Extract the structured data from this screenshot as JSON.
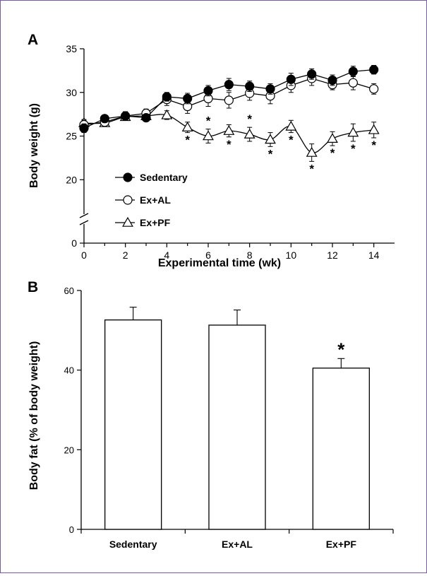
{
  "chart_data": [
    {
      "panel": "A",
      "type": "line",
      "xlabel": "Experimental time (wk)",
      "ylabel": "Body weight (g)",
      "x": [
        0,
        1,
        2,
        3,
        4,
        5,
        6,
        7,
        8,
        9,
        10,
        11,
        12,
        13,
        14
      ],
      "x_ticks": [
        0,
        2,
        4,
        6,
        8,
        10,
        12,
        14
      ],
      "xlim": [
        0,
        15
      ],
      "y_ticks": [
        0,
        20,
        25,
        30,
        35
      ],
      "ylim_upper": [
        18,
        35
      ],
      "y_axis_break": true,
      "legend_position": "center-left",
      "series": [
        {
          "name": "Sedentary",
          "marker": "filled-circle",
          "values": [
            25.9,
            27.0,
            27.3,
            27.1,
            29.5,
            29.3,
            30.2,
            30.9,
            30.7,
            30.4,
            31.5,
            32.1,
            31.4,
            32.4,
            32.6
          ],
          "errors": [
            0.5,
            0.4,
            0.4,
            0.4,
            0.5,
            0.6,
            0.6,
            0.7,
            0.6,
            0.6,
            0.7,
            0.6,
            0.6,
            0.6,
            0.5
          ]
        },
        {
          "name": "Ex+AL",
          "marker": "open-circle",
          "values": [
            26.3,
            26.6,
            27.3,
            27.6,
            29.2,
            28.4,
            29.3,
            29.1,
            29.9,
            29.6,
            30.8,
            31.6,
            30.9,
            31.1,
            30.4
          ],
          "errors": [
            0.5,
            0.5,
            0.5,
            0.5,
            0.7,
            0.8,
            0.9,
            0.9,
            0.8,
            0.9,
            0.8,
            0.8,
            0.6,
            0.8,
            0.6
          ]
        },
        {
          "name": "Ex+PF",
          "marker": "open-triangle",
          "values": [
            26.5,
            26.5,
            27.2,
            27.3,
            27.4,
            26.0,
            25.0,
            25.6,
            25.2,
            24.6,
            26.1,
            23.1,
            24.7,
            25.4,
            25.7
          ],
          "errors": [
            0.4,
            0.4,
            0.4,
            0.4,
            0.5,
            0.6,
            0.8,
            0.7,
            0.8,
            0.8,
            0.7,
            1.0,
            0.8,
            1.0,
            0.9
          ]
        }
      ],
      "significance_marker": "*",
      "significant_weeks": [
        5,
        6,
        7,
        8,
        9,
        10,
        11,
        12,
        13,
        14
      ]
    },
    {
      "panel": "B",
      "type": "bar",
      "ylabel": "Body fat (% of body weight)",
      "categories": [
        "Sedentary",
        "Ex+AL",
        "Ex+PF"
      ],
      "values": [
        52.6,
        51.3,
        40.5
      ],
      "errors": [
        3.2,
        3.8,
        2.4
      ],
      "y_ticks": [
        0,
        20,
        40,
        60
      ],
      "ylim": [
        0,
        60
      ],
      "significance_marker": "*",
      "significant_categories": [
        "Ex+PF"
      ]
    }
  ],
  "colors": {
    "frame": "#7a5aa8",
    "ink": "#000000",
    "fill": "#ffffff"
  }
}
